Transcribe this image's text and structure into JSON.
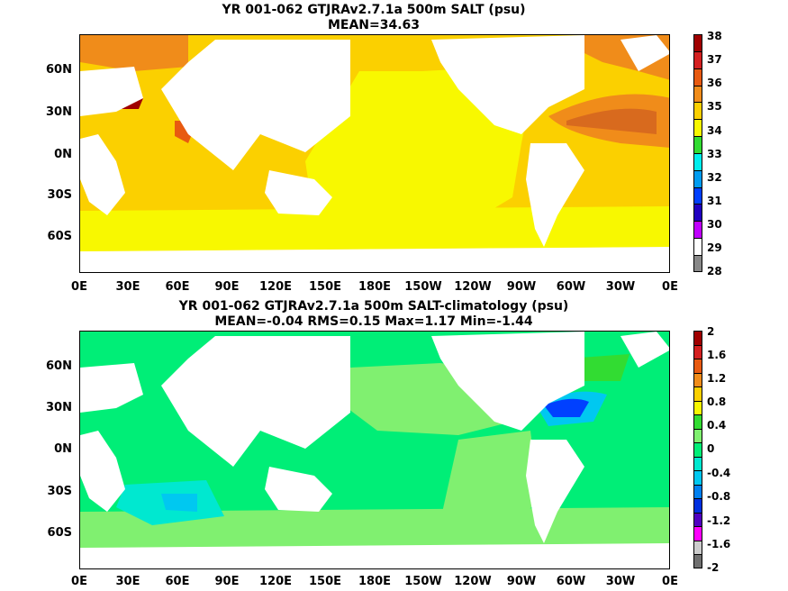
{
  "panel1": {
    "title_line1": "YR 001-062 GTJRAv2.7.1a 500m SALT (psu)",
    "title_line2": "MEAN=34.63",
    "colorbar_labels": [
      "38",
      "37",
      "36",
      "35",
      "34",
      "33",
      "32",
      "31",
      "30",
      "29",
      "28"
    ],
    "colorbar_colors": [
      "#a00000",
      "#d42020",
      "#e85a10",
      "#f08c1a",
      "#fbd000",
      "#f8f800",
      "#32dc32",
      "#00eeee",
      "#009cf0",
      "#0040ff",
      "#2000c0",
      "#c000ff",
      "#ffffff",
      "#888888"
    ]
  },
  "panel2": {
    "title_line1": "YR 001-062 GTJRAv2.7.1a 500m SALT-climatology (psu)",
    "title_line2": "MEAN=-0.04   RMS=0.15   Max=1.17   Min=-1.44",
    "colorbar_labels": [
      "2",
      "1.6",
      "1.2",
      "0.8",
      "0.4",
      "0",
      "-0.4",
      "-0.8",
      "-1.2",
      "-1.6",
      "-2"
    ],
    "colorbar_colors": [
      "#a00000",
      "#d42020",
      "#e85a10",
      "#f08c1a",
      "#fbd000",
      "#f8f800",
      "#32dc32",
      "#80f070",
      "#00ee77",
      "#00e8d0",
      "#00c8f0",
      "#0080f0",
      "#0030e0",
      "#5000c0",
      "#ff00ff",
      "#cccccc",
      "#707070"
    ]
  },
  "x_ticks": [
    "0E",
    "30E",
    "60E",
    "90E",
    "120E",
    "150E",
    "180E",
    "150W",
    "120W",
    "90W",
    "60W",
    "30W",
    "0E"
  ],
  "y_ticks": [
    "60N",
    "30N",
    "0N",
    "30S",
    "60S"
  ]
}
